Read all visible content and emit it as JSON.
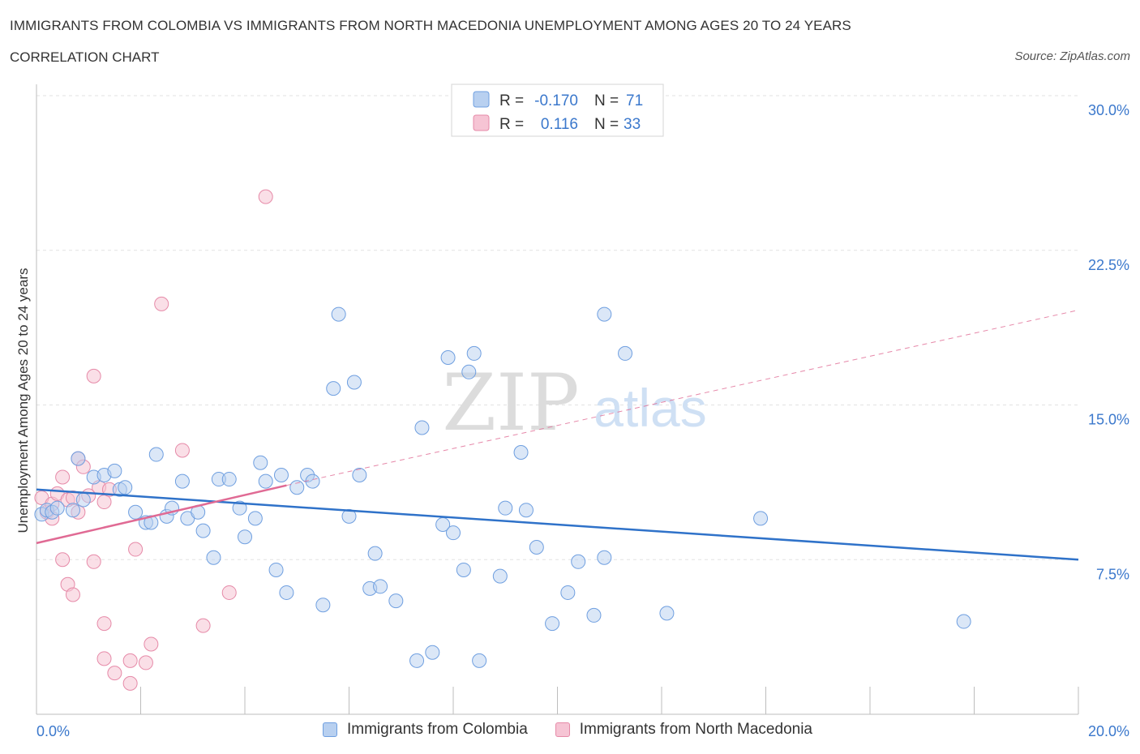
{
  "header": {
    "title": "IMMIGRANTS FROM COLOMBIA VS IMMIGRANTS FROM NORTH MACEDONIA UNEMPLOYMENT AMONG AGES 20 TO 24 YEARS",
    "subtitle": "CORRELATION CHART",
    "source": "Source: ZipAtlas.com"
  },
  "watermark": {
    "zip": "ZIP",
    "atlas": "atlas"
  },
  "colors": {
    "blue_fill": "#b8d0f0",
    "blue_stroke": "#6f9fe0",
    "blue_line": "#2f72c9",
    "blue_text": "#3b78cc",
    "pink_fill": "#f6c4d4",
    "pink_stroke": "#e68aa8",
    "pink_line": "#e06a94"
  },
  "chart_data": {
    "type": "scatter",
    "title": "IMMIGRANTS FROM COLOMBIA VS IMMIGRANTS FROM NORTH MACEDONIA UNEMPLOYMENT AMONG AGES 20 TO 24 YEARS",
    "xlabel": "",
    "ylabel": "Unemployment Among Ages 20 to 24 years",
    "xlim": [
      0,
      20
    ],
    "ylim": [
      0,
      30
    ],
    "x_tick_labels": [
      "0.0%",
      "20.0%"
    ],
    "y_ticks": [
      7.5,
      15,
      22.5,
      30
    ],
    "y_tick_labels": [
      "7.5%",
      "15.0%",
      "22.5%",
      "30.0%"
    ],
    "grid": true,
    "legend_stats": [
      {
        "r_label": "R =",
        "r_value": "-0.170",
        "n_label": "N =",
        "n_value": "71"
      },
      {
        "r_label": "R =",
        "r_value": "0.116",
        "n_label": "N =",
        "n_value": "33"
      }
    ],
    "series": [
      {
        "name": "Immigrants from Colombia",
        "trend": {
          "x": [
            0,
            20
          ],
          "y": [
            10.9,
            7.5
          ],
          "style": "solid"
        },
        "points": [
          [
            0.1,
            9.7
          ],
          [
            0.2,
            9.9
          ],
          [
            0.3,
            9.8
          ],
          [
            0.4,
            10.0
          ],
          [
            0.7,
            9.9
          ],
          [
            0.9,
            10.4
          ],
          [
            0.8,
            12.4
          ],
          [
            1.1,
            11.5
          ],
          [
            1.3,
            11.6
          ],
          [
            1.5,
            11.8
          ],
          [
            1.6,
            10.9
          ],
          [
            1.7,
            11.0
          ],
          [
            1.9,
            9.8
          ],
          [
            2.1,
            9.3
          ],
          [
            2.2,
            9.3
          ],
          [
            2.3,
            12.6
          ],
          [
            2.5,
            9.6
          ],
          [
            2.6,
            10.0
          ],
          [
            2.8,
            11.3
          ],
          [
            2.9,
            9.5
          ],
          [
            3.1,
            9.8
          ],
          [
            3.2,
            8.9
          ],
          [
            3.4,
            7.6
          ],
          [
            3.5,
            11.4
          ],
          [
            3.7,
            11.4
          ],
          [
            3.9,
            10.0
          ],
          [
            4.0,
            8.6
          ],
          [
            4.2,
            9.5
          ],
          [
            4.3,
            12.2
          ],
          [
            4.4,
            11.3
          ],
          [
            4.6,
            7.0
          ],
          [
            4.7,
            11.6
          ],
          [
            4.8,
            5.9
          ],
          [
            5.0,
            11.0
          ],
          [
            5.2,
            11.6
          ],
          [
            5.3,
            11.3
          ],
          [
            5.5,
            5.3
          ],
          [
            5.7,
            15.8
          ],
          [
            5.8,
            19.4
          ],
          [
            6.0,
            9.6
          ],
          [
            6.1,
            16.1
          ],
          [
            6.2,
            11.6
          ],
          [
            6.4,
            6.1
          ],
          [
            6.5,
            7.8
          ],
          [
            6.6,
            6.2
          ],
          [
            6.9,
            5.5
          ],
          [
            7.3,
            2.6
          ],
          [
            7.4,
            13.9
          ],
          [
            7.6,
            3.0
          ],
          [
            7.8,
            9.2
          ],
          [
            7.9,
            17.3
          ],
          [
            8.0,
            8.8
          ],
          [
            8.2,
            7.0
          ],
          [
            8.3,
            16.6
          ],
          [
            8.4,
            17.5
          ],
          [
            8.5,
            2.6
          ],
          [
            8.9,
            6.7
          ],
          [
            9.0,
            10.0
          ],
          [
            9.3,
            12.7
          ],
          [
            9.4,
            9.9
          ],
          [
            9.6,
            8.1
          ],
          [
            9.9,
            4.4
          ],
          [
            10.2,
            5.9
          ],
          [
            10.4,
            7.4
          ],
          [
            10.7,
            4.8
          ],
          [
            10.9,
            19.4
          ],
          [
            10.9,
            7.6
          ],
          [
            11.3,
            17.5
          ],
          [
            12.1,
            4.9
          ],
          [
            13.9,
            9.5
          ],
          [
            17.8,
            4.5
          ]
        ]
      },
      {
        "name": "Immigrants from North Macedonia",
        "trend": {
          "x": [
            0,
            4.8
          ],
          "y": [
            8.3,
            11.1
          ],
          "style": "solid",
          "extended_x": [
            4.8,
            20
          ],
          "extended_y": [
            11.1,
            19.6
          ],
          "extended_style": "dashed"
        },
        "points": [
          [
            0.1,
            10.5
          ],
          [
            0.2,
            9.8
          ],
          [
            0.3,
            9.5
          ],
          [
            0.3,
            10.2
          ],
          [
            0.4,
            10.7
          ],
          [
            0.5,
            11.5
          ],
          [
            0.6,
            10.4
          ],
          [
            0.5,
            7.5
          ],
          [
            0.6,
            6.3
          ],
          [
            0.7,
            10.5
          ],
          [
            0.7,
            5.8
          ],
          [
            0.8,
            9.8
          ],
          [
            0.8,
            12.4
          ],
          [
            0.9,
            12.0
          ],
          [
            1.0,
            10.6
          ],
          [
            1.1,
            16.4
          ],
          [
            1.1,
            7.4
          ],
          [
            1.2,
            11.0
          ],
          [
            1.3,
            10.3
          ],
          [
            1.3,
            4.4
          ],
          [
            1.3,
            2.7
          ],
          [
            1.4,
            10.9
          ],
          [
            1.5,
            2.0
          ],
          [
            1.8,
            2.6
          ],
          [
            1.8,
            1.5
          ],
          [
            1.9,
            8.0
          ],
          [
            2.1,
            2.5
          ],
          [
            2.2,
            3.4
          ],
          [
            2.4,
            19.9
          ],
          [
            2.8,
            12.8
          ],
          [
            3.2,
            4.3
          ],
          [
            3.7,
            5.9
          ],
          [
            4.4,
            25.1
          ]
        ]
      }
    ]
  },
  "bottom_legend": {
    "items": [
      {
        "label": "Immigrants from Colombia"
      },
      {
        "label": "Immigrants from North Macedonia"
      }
    ]
  }
}
